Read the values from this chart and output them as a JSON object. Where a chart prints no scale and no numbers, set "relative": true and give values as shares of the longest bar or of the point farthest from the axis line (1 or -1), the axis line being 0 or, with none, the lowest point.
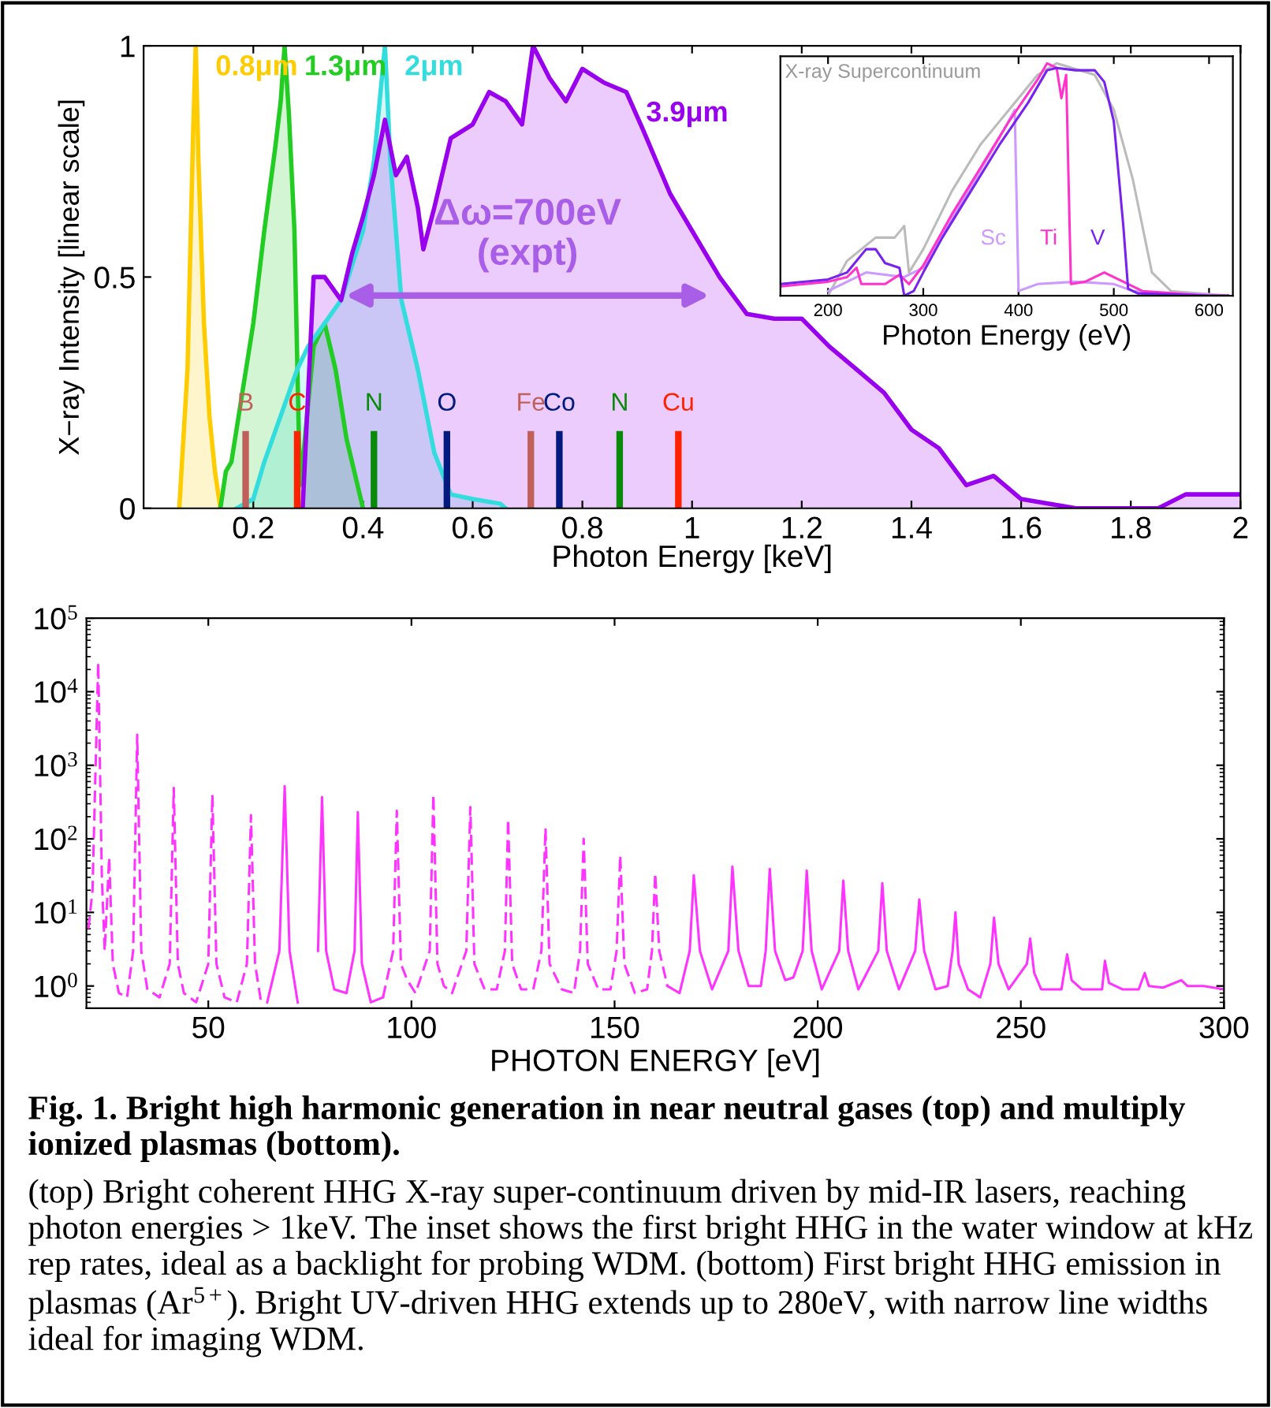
{
  "chart_data": [
    {
      "type": "area",
      "xlabel": "Photon Energy [keV]",
      "ylabel": "X−ray Intensity [linear scale]",
      "xlim": [
        0,
        2
      ],
      "ylim": [
        0,
        1
      ],
      "xticks": [
        0.2,
        0.4,
        0.6,
        0.8,
        1,
        1.2,
        1.4,
        1.6,
        1.8,
        2
      ],
      "yticks": [
        0,
        0.5,
        1
      ],
      "series": [
        {
          "name": "0.8μm",
          "color": "#ffcc00",
          "x": [
            0.065,
            0.08,
            0.09,
            0.095,
            0.1,
            0.11,
            0.12,
            0.13,
            0.14
          ],
          "values": [
            0,
            0.3,
            0.8,
            1,
            0.75,
            0.4,
            0.2,
            0.08,
            0
          ]
        },
        {
          "name": "1.3μm",
          "color": "#22cc22",
          "x": [
            0.14,
            0.15,
            0.16,
            0.18,
            0.2,
            0.22,
            0.24,
            0.25,
            0.257,
            0.265,
            0.275,
            0.285,
            0.29,
            0.31,
            0.33,
            0.35,
            0.37,
            0.4
          ],
          "values": [
            0,
            0.08,
            0.1,
            0.25,
            0.4,
            0.6,
            0.78,
            0.88,
            1,
            0.85,
            0.6,
            0.05,
            0.1,
            0.35,
            0.4,
            0.3,
            0.15,
            0
          ]
        },
        {
          "name": "2μm",
          "color": "#33dddd",
          "x": [
            0.17,
            0.2,
            0.22,
            0.25,
            0.28,
            0.3,
            0.33,
            0.36,
            0.4,
            0.42,
            0.44,
            0.45,
            0.47,
            0.5,
            0.53,
            0.56,
            0.6,
            0.65,
            0.66
          ],
          "values": [
            0,
            0.02,
            0.1,
            0.2,
            0.3,
            0.35,
            0.4,
            0.45,
            0.6,
            0.75,
            1,
            0.75,
            0.45,
            0.3,
            0.12,
            0.03,
            0.02,
            0.01,
            0
          ]
        },
        {
          "name": "3.9μm",
          "color": "#9900ee",
          "x": [
            0.29,
            0.31,
            0.33,
            0.36,
            0.38,
            0.4,
            0.42,
            0.44,
            0.46,
            0.48,
            0.5,
            0.51,
            0.53,
            0.56,
            0.6,
            0.63,
            0.66,
            0.69,
            0.71,
            0.74,
            0.77,
            0.8,
            0.84,
            0.88,
            0.91,
            0.96,
            1.0,
            1.05,
            1.1,
            1.15,
            1.2,
            1.25,
            1.3,
            1.35,
            1.4,
            1.45,
            1.5,
            1.55,
            1.6,
            1.7,
            1.85,
            1.9,
            2.0
          ],
          "values": [
            0,
            0.5,
            0.5,
            0.45,
            0.55,
            0.63,
            0.72,
            0.84,
            0.72,
            0.76,
            0.65,
            0.56,
            0.65,
            0.8,
            0.83,
            0.9,
            0.88,
            0.83,
            1.0,
            0.93,
            0.88,
            0.95,
            0.92,
            0.9,
            0.82,
            0.68,
            0.6,
            0.5,
            0.42,
            0.41,
            0.41,
            0.35,
            0.3,
            0.25,
            0.17,
            0.13,
            0.05,
            0.07,
            0.02,
            0,
            0,
            0.03,
            0.03
          ]
        }
      ],
      "ref_lines": [
        {
          "axis": "x",
          "value": 0.186,
          "label": "B",
          "color": "#c0605a"
        },
        {
          "axis": "x",
          "value": 0.28,
          "label": "C",
          "color": "#ff2200"
        },
        {
          "axis": "x",
          "value": 0.42,
          "label": "N",
          "color": "#0a8a0a"
        },
        {
          "axis": "x",
          "value": 0.553,
          "label": "O",
          "color": "#001a80"
        },
        {
          "axis": "x",
          "value": 0.706,
          "label": "Fe",
          "color": "#c0605a"
        },
        {
          "axis": "x",
          "value": 0.758,
          "label": "Co",
          "color": "#001a80"
        },
        {
          "axis": "x",
          "value": 0.868,
          "label": "N",
          "color": "#0a8a0a"
        },
        {
          "axis": "x",
          "value": 0.975,
          "label": "Cu",
          "color": "#ff2200"
        }
      ],
      "annotations": [
        "Δω=700eV\n(expt)"
      ]
    },
    {
      "type": "line",
      "relative": true,
      "title": "X-ray Supercontinuum",
      "xlabel": "Photon Energy (eV)",
      "xlim": [
        150,
        625
      ],
      "xticks": [
        200,
        300,
        400,
        500,
        600
      ],
      "series": [
        {
          "color": "#bbbbbb",
          "x": [
            200,
            220,
            250,
            270,
            280,
            285,
            300,
            330,
            360,
            400,
            420,
            440,
            480,
            500,
            520,
            540,
            560,
            620
          ],
          "values": [
            0,
            0.15,
            0.25,
            0.25,
            0.3,
            0.1,
            0.2,
            0.45,
            0.65,
            0.85,
            0.95,
            1.0,
            0.95,
            0.8,
            0.5,
            0.1,
            0.02,
            0
          ]
        },
        {
          "name": "Sc",
          "color": "#cc99ff",
          "x": [
            200,
            240,
            280,
            300,
            340,
            380,
            396,
            400,
            420,
            460,
            500,
            520,
            560,
            620
          ],
          "values": [
            0.02,
            0.1,
            0.08,
            0.12,
            0.4,
            0.68,
            0.8,
            0.02,
            0.05,
            0.06,
            0.05,
            0.02,
            0.01,
            0
          ]
        },
        {
          "name": "Ti",
          "color": "#ff33cc",
          "x": [
            150,
            200,
            220,
            230,
            235,
            260,
            275,
            285,
            300,
            330,
            360,
            390,
            420,
            430,
            440,
            445,
            450,
            455,
            470,
            490,
            510,
            530,
            600,
            620
          ],
          "values": [
            0.04,
            0.06,
            0.08,
            0.12,
            0.05,
            0.05,
            0.09,
            0.05,
            0.13,
            0.35,
            0.55,
            0.75,
            0.93,
            1.0,
            0.98,
            0.85,
            0.95,
            0.05,
            0.06,
            0.1,
            0.06,
            0.02,
            0,
            0
          ]
        },
        {
          "name": "V",
          "color": "#7722ee",
          "x": [
            150,
            200,
            220,
            240,
            250,
            260,
            275,
            280,
            290,
            300,
            320,
            350,
            380,
            410,
            430,
            440,
            460,
            480,
            490,
            500,
            510,
            515,
            525,
            600,
            620
          ],
          "values": [
            0.05,
            0.07,
            0.1,
            0.2,
            0.2,
            0.14,
            0.12,
            0,
            0.02,
            0.1,
            0.25,
            0.45,
            0.65,
            0.83,
            0.97,
            0.98,
            0.97,
            0.97,
            0.92,
            0.75,
            0.3,
            0.03,
            0.01,
            0,
            0
          ]
        }
      ]
    },
    {
      "type": "line",
      "log": "y",
      "xlabel": "PHOTON ENERGY [eV]",
      "xlim": [
        20,
        300
      ],
      "xticks": [
        50,
        100,
        150,
        200,
        250,
        300
      ],
      "ylim": [
        0.5,
        100000
      ],
      "yticks": [
        {
          "value": 1,
          "label": "10$^{0}$"
        },
        {
          "value": 10,
          "label": "10$^{1}$"
        },
        {
          "value": 100,
          "label": "10$^{2}$"
        },
        {
          "value": 1000,
          "label": "10$^{3}$"
        },
        {
          "value": 10000,
          "label": "10$^{4}$"
        },
        {
          "value": 100000,
          "label": "10$^{5}$"
        }
      ],
      "series": [
        {
          "color": "#ff33ff",
          "line_style": "dashed",
          "x": [
            20.5,
            21.5,
            22.9,
            23.8,
            24.5,
            25.6,
            26.5,
            28,
            30,
            31.5,
            32.5,
            33.5,
            35,
            38,
            40.5,
            41.5,
            42.5,
            44,
            47,
            50,
            51,
            52,
            54,
            57,
            59.5,
            60.5,
            61.5,
            63,
            64.5,
            93,
            95.5,
            96.4,
            97.4,
            99,
            101,
            104.5,
            105.4,
            106.4,
            108,
            110,
            113.5,
            114.5,
            115.5,
            118,
            121,
            123,
            123.8,
            124.8,
            127,
            130,
            132,
            133,
            134,
            137,
            140,
            141.5,
            142.4,
            143.4,
            146,
            149,
            150.5,
            151.4,
            152.4,
            155,
            158,
            159.2,
            160,
            161,
            163
          ],
          "values": [
            6,
            20,
            25000,
            30,
            3,
            56,
            2,
            0.8,
            0.7,
            3,
            2600,
            3,
            0.9,
            0.7,
            2,
            490,
            2,
            0.8,
            0.6,
            2,
            400,
            2,
            0.7,
            0.6,
            2,
            210,
            2,
            0.6,
            null,
            0.7,
            3,
            240,
            2,
            1.2,
            0.8,
            3,
            400,
            2,
            1,
            0.8,
            3,
            270,
            2,
            0.9,
            0.9,
            3,
            185,
            2,
            0.9,
            0.9,
            3,
            140,
            2,
            0.9,
            0.8,
            3,
            100,
            2,
            0.9,
            0.9,
            3,
            60,
            2,
            0.8,
            0.9,
            3,
            34,
            3,
            1
          ]
        },
        {
          "color": "#ff33ff",
          "line_style": "solid",
          "x": [
            64.5,
            67.5,
            68.8,
            70,
            72,
            74,
            77,
            78,
            79,
            81,
            84,
            86,
            86.8,
            87.8,
            90,
            93,
            95,
            163,
            166,
            168.5,
            169.5,
            171,
            174,
            178,
            179,
            180.5,
            183,
            186,
            187.2,
            188.2,
            189.5,
            192,
            194,
            196.3,
            197.3,
            198.5,
            201,
            205.3,
            206.3,
            207.5,
            210,
            214.9,
            215.9,
            217,
            220,
            224,
            225,
            226.2,
            229,
            232,
            233.2,
            233.9,
            234.7,
            237,
            240,
            242.5,
            243.4,
            244.5,
            247,
            251.5,
            252.3,
            253.3,
            255,
            260,
            261.4,
            262.5,
            265,
            270,
            270.7,
            271.7,
            275,
            279,
            280.5,
            281.5,
            285,
            289.5,
            291,
            295,
            300
          ],
          "values": [
            0.6,
            3,
            520,
            3,
            0.6,
            null,
            3,
            370,
            3,
            0.9,
            0.8,
            3,
            230,
            2,
            0.6,
            0.7,
            null,
            1,
            0.8,
            3,
            32,
            3,
            0.9,
            3,
            42,
            3,
            1,
            1,
            3,
            39,
            3,
            1.2,
            1.3,
            3,
            37,
            3,
            0.9,
            3,
            27,
            3,
            0.9,
            3,
            25,
            3,
            0.9,
            3,
            15,
            3,
            0.9,
            1,
            3,
            10,
            2,
            0.9,
            0.7,
            2,
            8.5,
            2,
            0.9,
            2,
            4.4,
            1.5,
            0.9,
            0.9,
            2.7,
            1.2,
            0.9,
            0.9,
            2.2,
            1.1,
            0.9,
            0.9,
            1.5,
            1,
            0.95,
            1.2,
            1,
            1,
            0.9
          ]
        }
      ],
      "annotations": [
        "Fig. 1. Bright high harmonic generation in near neutral gases (top) and multiply ionized plasmas (bottom).",
        "(top) Bright coherent HHG X-ray super-continuum driven by mid-IR lasers, reaching photon energies > 1keV. The inset shows the first bright HHG in the water window at kHz rep rates, ideal as a backlight for probing WDM. (bottom) First bright HHG emission in plasmas (Ar$^{5+}$). Bright UV-driven HHG extends up to 280eV, with narrow line widths ideal for imaging WDM."
      ]
    }
  ]
}
